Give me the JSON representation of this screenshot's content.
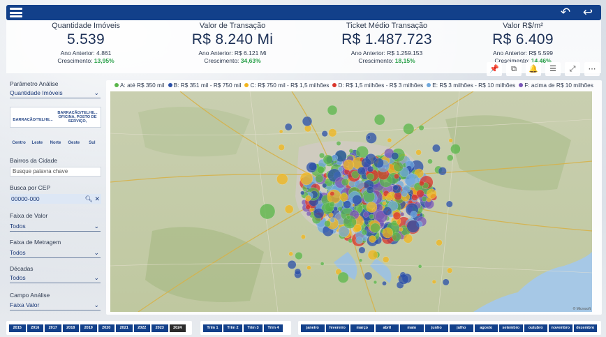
{
  "header": {
    "menu_icon": "hamburger-icon",
    "undo_icon": "undo-icon",
    "back_icon": "back-arrow-icon",
    "color": "#12408a"
  },
  "kpis": [
    {
      "title": "Quantidade Imóveis",
      "value": "5.539",
      "prev": "Ano Anterior: 4.861",
      "growth_label": "Crescimento:",
      "growth": "13,95%"
    },
    {
      "title": "Valor de Transação",
      "value": "R$ 8.240 Mi",
      "prev": "Ano Anterior: R$ 6.121 Mi",
      "growth_label": "Crescimento:",
      "growth": "34,63%"
    },
    {
      "title": "Ticket Médio Transação",
      "value": "R$ 1.487.723",
      "prev": "Ano Anterior: R$ 1.259.153",
      "growth_label": "Crescimento:",
      "growth": "18,15%"
    },
    {
      "title": "Valor R$/m²",
      "value": "R$ 6.409",
      "prev": "Ano Anterior: R$ 5.599",
      "growth_label": "Crescimento:",
      "growth": "14,46%"
    }
  ],
  "visual_header_icons": [
    "pin-icon",
    "copy-icon",
    "bell-icon",
    "filter-icon",
    "expand-icon",
    "more-options-icon"
  ],
  "filters": {
    "parametro_label": "Parâmetro Análise",
    "parametro_value": "Quantidade Imóveis",
    "segments": [
      "BARRACÃO/TELHE...",
      "BARRACÃO/TELHE... OFICINA, POSTO DE SERVIÇO,"
    ],
    "zones": [
      "Centro",
      "Leste",
      "Norte",
      "Oeste",
      "Sul"
    ],
    "bairros_label": "Bairros da Cidade",
    "bairros_placeholder": "Busque palavra chave",
    "cep_label": "Busca por CEP",
    "cep_value": "00000-000",
    "faixa_valor_label": "Faixa de Valor",
    "faixa_valor_value": "Todos",
    "faixa_metragem_label": "Faixa de Metragem",
    "faixa_metragem_value": "Todos",
    "decadas_label": "Décadas",
    "decadas_value": "Todos",
    "campo_label": "Campo Análise",
    "campo_value": "Faixa Valor"
  },
  "legend": [
    {
      "label": "A: até R$ 350 mil",
      "color": "#59b64a"
    },
    {
      "label": "B: R$ 351 mil - R$ 750 mil",
      "color": "#2a4fa8"
    },
    {
      "label": "C: R$ 750 mil - R$ 1,5 milhões",
      "color": "#f2b51c"
    },
    {
      "label": "D: R$ 1,5 milhões - R$ 3 milhões",
      "color": "#d9342b"
    },
    {
      "label": "E: R$ 3 milhões - R$ 10 milhões",
      "color": "#6fa8dc"
    },
    {
      "label": "F: acima de R$ 10 milhões",
      "color": "#7a57b8"
    }
  ],
  "map_credit": "© Microsoft",
  "years": [
    "2015",
    "2016",
    "2017",
    "2018",
    "2019",
    "2020",
    "2021",
    "2022",
    "2023",
    "2024"
  ],
  "selected_year": "2024",
  "quarters": [
    "Trim 1",
    "Trim 2",
    "Trim 3",
    "Trim 4"
  ],
  "months": [
    "janeiro",
    "fevereiro",
    "março",
    "abril",
    "maio",
    "junho",
    "julho",
    "agosto",
    "setembro",
    "outubro",
    "novembro",
    "dezembro"
  ]
}
